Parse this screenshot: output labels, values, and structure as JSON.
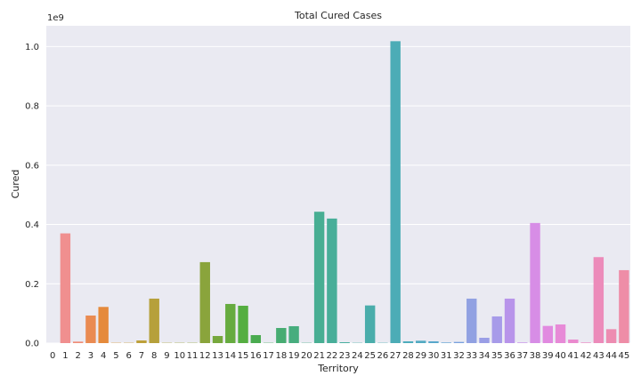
{
  "chart_data": {
    "type": "bar",
    "title": "Total Cured Cases",
    "xlabel": "Territory",
    "ylabel": "Cured",
    "y_multiplier_label": "1e9",
    "ylim": [
      0,
      1.07
    ],
    "yticks": [
      "0.0",
      "0.2",
      "0.4",
      "0.6",
      "0.8",
      "1.0"
    ],
    "grid": true,
    "categories": [
      "0",
      "1",
      "2",
      "3",
      "4",
      "5",
      "6",
      "7",
      "8",
      "9",
      "10",
      "11",
      "12",
      "13",
      "14",
      "15",
      "16",
      "17",
      "18",
      "19",
      "20",
      "21",
      "22",
      "23",
      "24",
      "25",
      "26",
      "27",
      "28",
      "29",
      "30",
      "31",
      "32",
      "33",
      "34",
      "35",
      "36",
      "37",
      "38",
      "39",
      "40",
      "41",
      "42",
      "43",
      "44",
      "45"
    ],
    "values": [
      0.0,
      0.37,
      0.005,
      0.093,
      0.122,
      0.001,
      0.001,
      0.009,
      0.15,
      0.001,
      0.001,
      0.001,
      0.273,
      0.024,
      0.132,
      0.126,
      0.027,
      0.001,
      0.051,
      0.057,
      0.001,
      0.443,
      0.42,
      0.003,
      0.001,
      0.127,
      0.001,
      1.018,
      0.006,
      0.008,
      0.006,
      0.002,
      0.004,
      0.15,
      0.018,
      0.09,
      0.15,
      0.002,
      0.405,
      0.058,
      0.063,
      0.012,
      0.002,
      0.29,
      0.047,
      0.246
    ],
    "colors": [
      "#f08f8f",
      "#f08f8f",
      "#ef8c77",
      "#ea8b52",
      "#e58a3c",
      "#d79a3a",
      "#c89f3a",
      "#bda03a",
      "#b6a03b",
      "#a9a23b",
      "#9ea43b",
      "#93a63c",
      "#8aa43c",
      "#77a83d",
      "#66ab3f",
      "#55ae41",
      "#4aab50",
      "#48ab63",
      "#47ac72",
      "#47ad7e",
      "#48ad89",
      "#48ae93",
      "#48ae99",
      "#49ae9f",
      "#49aea6",
      "#4aadab",
      "#4badb0",
      "#4cacb6",
      "#4eacbc",
      "#52aac2",
      "#58a7cb",
      "#62a4d5",
      "#78a1dd",
      "#91a1e2",
      "#9a9ee6",
      "#a79be9",
      "#b894ea",
      "#c78fea",
      "#d78de6",
      "#e18ae0",
      "#e78ad7",
      "#ea8ace",
      "#ec8bc4",
      "#ec8bba",
      "#ed8cb1",
      "#ee8da7"
    ]
  }
}
